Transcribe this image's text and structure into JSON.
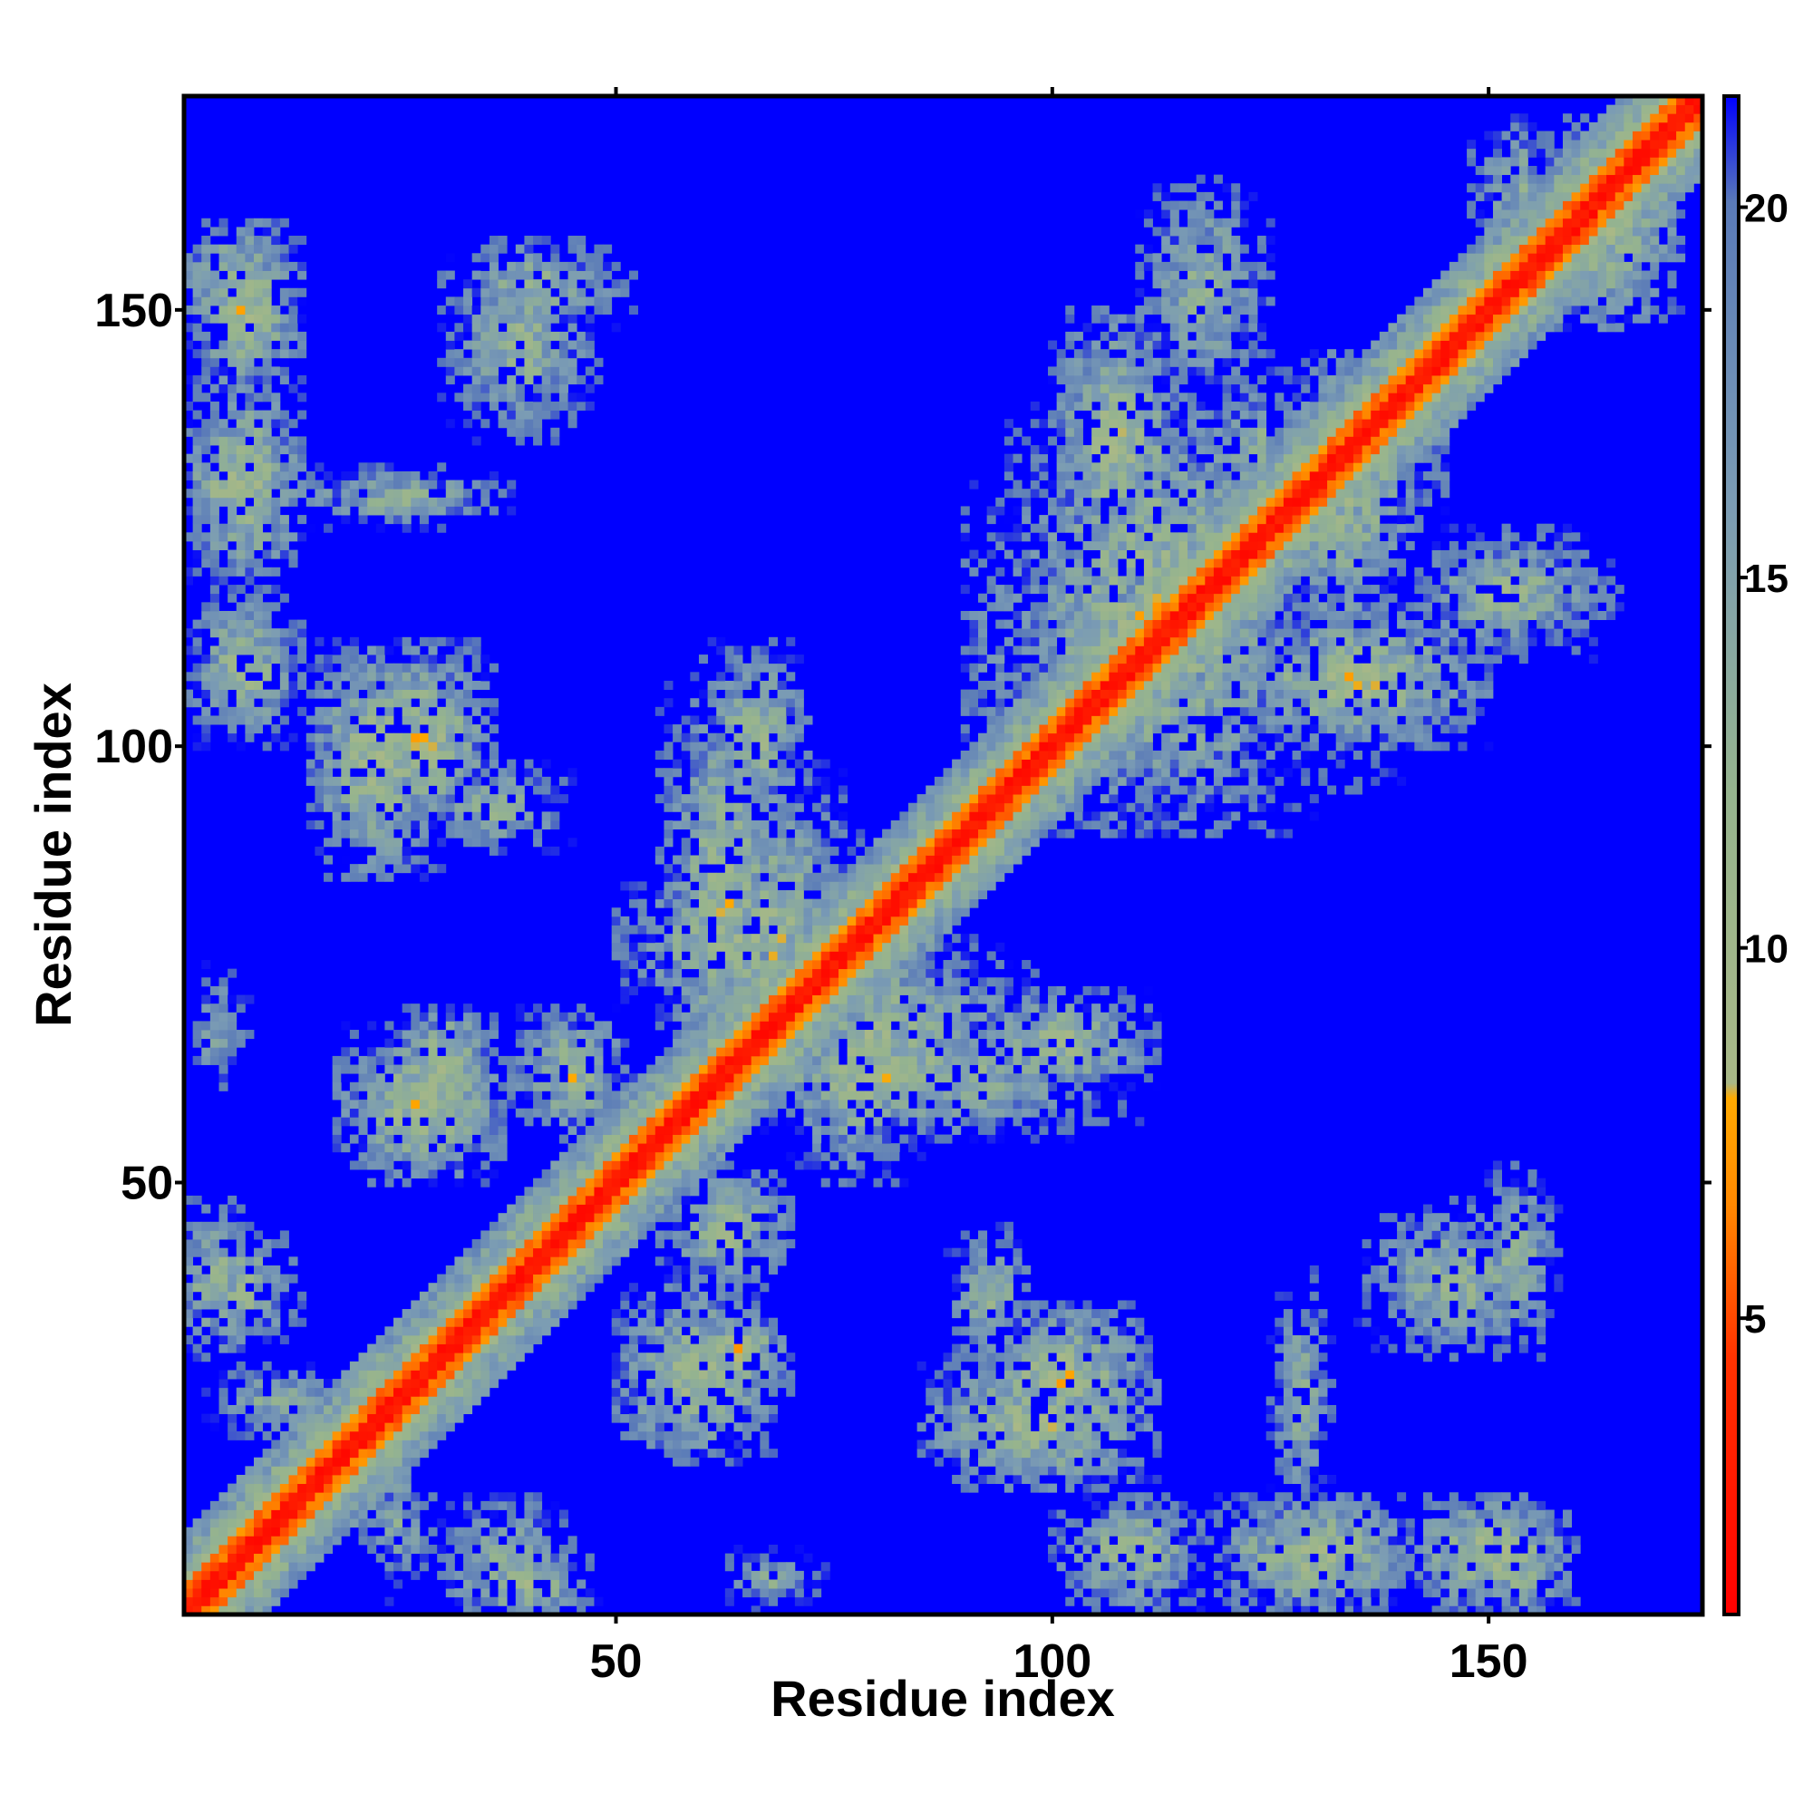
{
  "chart_data": {
    "type": "heatmap",
    "title": "",
    "xlabel": "Residue index",
    "ylabel": "Residue index",
    "n_residues": 174,
    "xlim": [
      0.5,
      174.5
    ],
    "ylim": [
      0.5,
      174.5
    ],
    "x_ticks": [
      50,
      100,
      150
    ],
    "y_ticks": [
      50,
      100,
      150
    ],
    "x_tick_labels": [
      "50",
      "100",
      "150"
    ],
    "y_tick_labels": [
      "50",
      "100",
      "150"
    ],
    "colorbar": {
      "range": [
        1,
        21.5
      ],
      "ticks": [
        5,
        10,
        15,
        20
      ],
      "tick_labels": [
        "5",
        "10",
        "15",
        "20"
      ],
      "stops": [
        {
          "value": 1,
          "color": "#ff0000"
        },
        {
          "value": 4.5,
          "color": "#ff3300"
        },
        {
          "value": 6.5,
          "color": "#ff8800"
        },
        {
          "value": 8,
          "color": "#ffaa00"
        },
        {
          "value": 8.3,
          "color": "#a9b887"
        },
        {
          "value": 12,
          "color": "#96b48e"
        },
        {
          "value": 16,
          "color": "#7b9cb4"
        },
        {
          "value": 20,
          "color": "#5a7ab8"
        },
        {
          "value": 21.5,
          "color": "#0000ff"
        }
      ]
    },
    "background_color": "#0000ff",
    "cutoff_value": 21.5,
    "description_of_pattern": {
      "diagonal_width": 3,
      "contact_regions": [
        {
          "i": [
            1,
            14
          ],
          "j": [
            140,
            160
          ],
          "min": 6
        },
        {
          "i": [
            1,
            14
          ],
          "j": [
            118,
            142
          ],
          "min": 6
        },
        {
          "i": [
            1,
            14
          ],
          "j": [
            100,
            118
          ],
          "min": 7
        },
        {
          "i": [
            1,
            14
          ],
          "j": [
            30,
            45
          ],
          "min": 8
        },
        {
          "i": [
            1,
            8
          ],
          "j": [
            60,
            75
          ],
          "min": 10
        },
        {
          "i": [
            20,
            36
          ],
          "j": [
            90,
            112
          ],
          "min": 6
        },
        {
          "i": [
            25,
            36
          ],
          "j": [
            58,
            70
          ],
          "min": 6
        },
        {
          "i": [
            20,
            30
          ],
          "j": [
            2,
            20
          ],
          "min": 10
        },
        {
          "i": [
            30,
            48
          ],
          "j": [
            135,
            158
          ],
          "min": 8
        },
        {
          "i": [
            30,
            48
          ],
          "j": [
            0,
            8
          ],
          "min": 7
        },
        {
          "i": [
            38,
            52
          ],
          "j": [
            55,
            70
          ],
          "min": 7
        },
        {
          "i": [
            50,
            68
          ],
          "j": [
            18,
            38
          ],
          "min": 6
        },
        {
          "i": [
            55,
            70
          ],
          "j": [
            55,
            110
          ],
          "min": 7
        },
        {
          "i": [
            58,
            78
          ],
          "j": [
            58,
            98
          ],
          "min": 7
        },
        {
          "i": [
            70,
            85
          ],
          "j": [
            50,
            75
          ],
          "min": 7
        },
        {
          "i": [
            88,
            98
          ],
          "j": [
            28,
            45
          ],
          "min": 8
        },
        {
          "i": [
            85,
            112
          ],
          "j": [
            15,
            30
          ],
          "min": 6
        },
        {
          "i": [
            90,
            112
          ],
          "j": [
            60,
            72
          ],
          "min": 7
        },
        {
          "i": [
            95,
            130
          ],
          "j": [
            90,
            140
          ],
          "min": 6
        },
        {
          "i": [
            100,
            115
          ],
          "j": [
            120,
            150
          ],
          "min": 6
        },
        {
          "i": [
            125,
            142
          ],
          "j": [
            115,
            145
          ],
          "min": 6
        },
        {
          "i": [
            110,
            125
          ],
          "j": [
            140,
            165
          ],
          "min": 8
        },
        {
          "i": [
            125,
            135
          ],
          "j": [
            0,
            10
          ],
          "min": 7
        },
        {
          "i": [
            125,
            132
          ],
          "j": [
            10,
            40
          ],
          "min": 9
        },
        {
          "i": [
            148,
            160
          ],
          "j": [
            0,
            10
          ],
          "min": 8
        },
        {
          "i": [
            148,
            158
          ],
          "j": [
            30,
            52
          ],
          "min": 8
        },
        {
          "i": [
            155,
            172
          ],
          "j": [
            148,
            172
          ],
          "min": 6
        }
      ]
    }
  }
}
